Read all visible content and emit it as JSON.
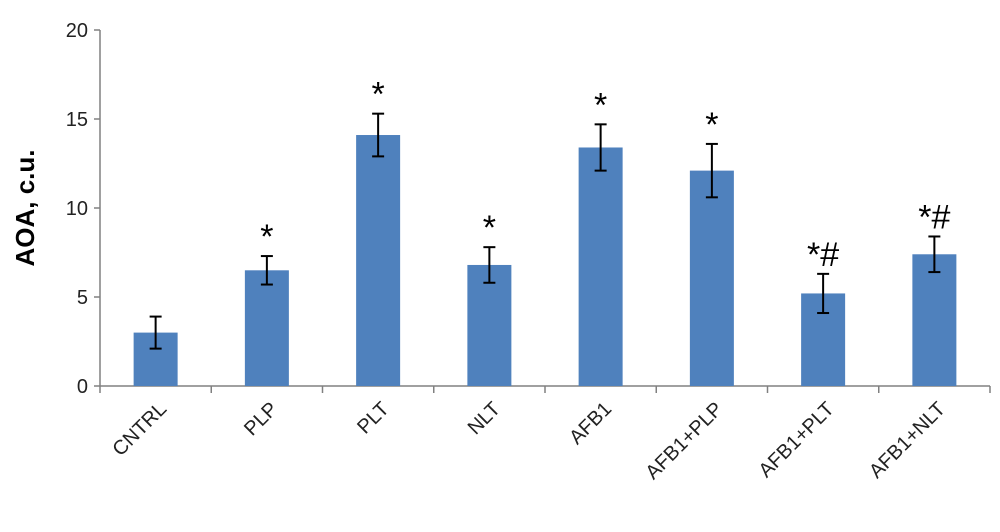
{
  "chart_data": {
    "type": "bar",
    "title": "",
    "xlabel": "",
    "ylabel": "AOA, c.u.",
    "ylim": [
      0,
      20
    ],
    "yticks": [
      "0",
      "5",
      "10",
      "15",
      "20"
    ],
    "grid": false,
    "legend": "none",
    "categories": [
      "CNTRL",
      "PLP",
      "PLT",
      "NLT",
      "AFB1",
      "AFB1+PLP",
      "AFB1+PLT",
      "AFB1+NLT"
    ],
    "values": [
      3.0,
      6.5,
      14.1,
      6.8,
      13.4,
      12.1,
      5.2,
      7.4
    ],
    "error_bars": [
      0.9,
      0.8,
      1.2,
      1.0,
      1.3,
      1.5,
      1.1,
      1.0
    ],
    "annotations": [
      "",
      "*",
      "*",
      "*",
      "*",
      "*",
      "*#",
      "*#"
    ],
    "colors": {
      "bar": "#4f81bd",
      "axis": "#808080",
      "error": "#000000"
    }
  }
}
